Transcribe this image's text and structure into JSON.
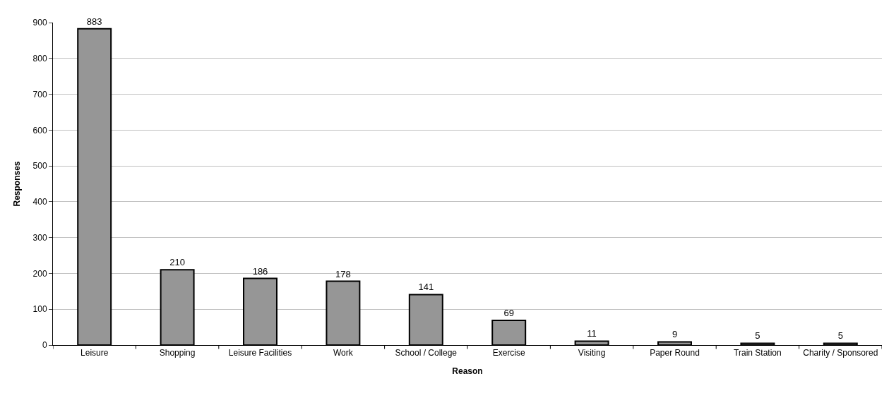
{
  "chart_data": {
    "type": "bar",
    "xlabel": "Reason",
    "ylabel": "Responses",
    "categories": [
      "Leisure",
      "Shopping",
      "Leisure Facilities",
      "Work",
      "School / College",
      "Exercise",
      "Visiting",
      "Paper Round",
      "Train Station",
      "Charity / Sponsored"
    ],
    "values": [
      883,
      210,
      186,
      178,
      141,
      69,
      11,
      9,
      5,
      5
    ],
    "color": "#969696",
    "ylim": [
      0,
      900
    ],
    "yticks": [
      0,
      100,
      200,
      300,
      400,
      500,
      600,
      700,
      800,
      900
    ],
    "grid": "y",
    "data_labels": true,
    "legend": false
  }
}
